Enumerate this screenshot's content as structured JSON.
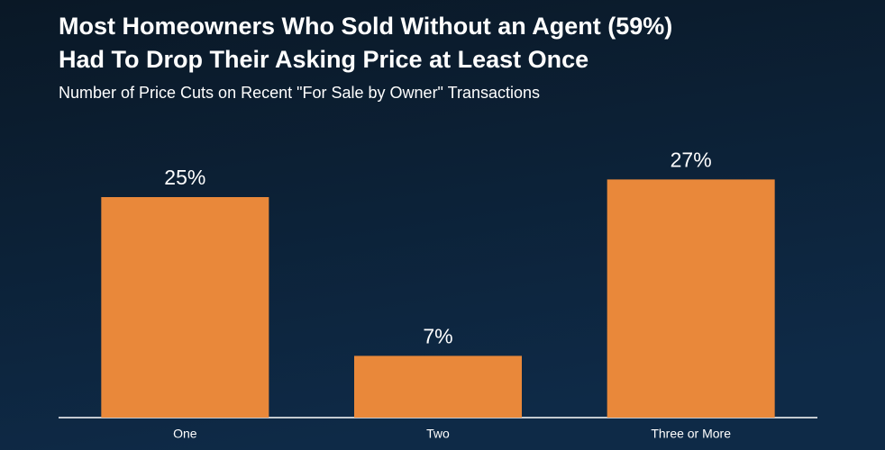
{
  "chart_data": {
    "type": "bar",
    "title": [
      "Most Homeowners Who Sold Without an Agent (59%)",
      "Had To Drop Their Asking Price at Least Once"
    ],
    "subtitle": "Number of Price Cuts on Recent \"For Sale by Owner\" Transactions",
    "categories": [
      "One",
      "Two",
      "Three or More"
    ],
    "values": [
      25,
      7,
      27
    ],
    "value_labels": [
      "25%",
      "7%",
      "27%"
    ],
    "color": "#e9883a"
  }
}
